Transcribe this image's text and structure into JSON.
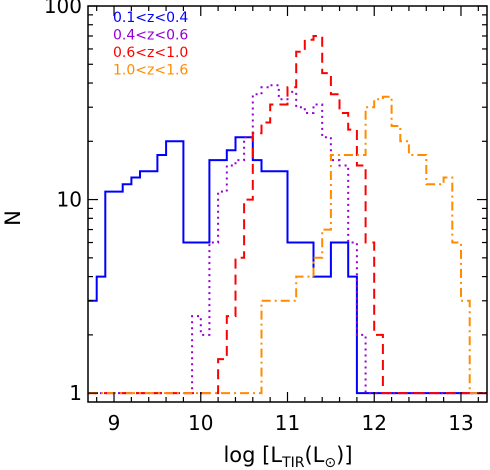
{
  "chart_data": {
    "type": "line",
    "subtype": "histogram-steps",
    "xlabel_parts": {
      "pre": "log [L",
      "sub": "TIR",
      "mid": "(L",
      "sym": "⊙",
      "post": ")]"
    },
    "ylabel": "N",
    "xlim": [
      8.7,
      13.3
    ],
    "ylim": [
      0.9,
      100
    ],
    "y_scale": "log",
    "x_ticks": [
      9,
      10,
      11,
      12,
      13
    ],
    "y_ticks": [
      {
        "value": 1,
        "label": "1"
      },
      {
        "value": 10,
        "label": "10"
      },
      {
        "value": 100,
        "label": "100"
      }
    ],
    "legend_position": "top-left",
    "series": [
      {
        "name": "0.1<z<0.4",
        "color": "#0000ff",
        "style": "solid",
        "x": [
          8.7,
          8.8,
          8.9,
          9.0,
          9.1,
          9.2,
          9.3,
          9.4,
          9.5,
          9.6,
          9.7,
          9.8,
          9.9,
          10.0,
          10.1,
          10.2,
          10.3,
          10.4,
          10.5,
          10.6,
          10.7,
          10.8,
          10.9,
          11.0,
          11.1,
          11.2,
          11.3,
          11.4,
          11.5,
          11.6,
          11.7,
          11.8,
          11.9,
          12.0,
          12.1,
          12.2,
          12.3,
          12.4,
          12.5,
          12.6,
          12.7,
          12.8,
          12.9,
          13.0,
          13.1,
          13.2,
          13.3
        ],
        "y": [
          3,
          4,
          11,
          11,
          12,
          13,
          14,
          14,
          17,
          20,
          20,
          6,
          6,
          6,
          16,
          16,
          18,
          21,
          21,
          16,
          14,
          14,
          14,
          6,
          6,
          6,
          4,
          4,
          6,
          6,
          4,
          1,
          1,
          1,
          1,
          1,
          1,
          1,
          1,
          1,
          1,
          1,
          1,
          1,
          1,
          1,
          1
        ]
      },
      {
        "name": "0.4<z<0.6",
        "color": "#9400d3",
        "style": "dotted",
        "x": [
          8.7,
          8.8,
          8.9,
          9.0,
          9.1,
          9.2,
          9.3,
          9.4,
          9.5,
          9.6,
          9.7,
          9.8,
          9.9,
          10.0,
          10.1,
          10.2,
          10.3,
          10.4,
          10.5,
          10.6,
          10.7,
          10.8,
          10.9,
          11.0,
          11.1,
          11.2,
          11.3,
          11.4,
          11.5,
          11.6,
          11.7,
          11.8,
          11.9,
          12.0,
          12.1,
          12.2,
          12.3,
          12.4,
          12.5,
          12.6,
          12.7,
          12.8,
          12.9,
          13.0,
          13.1,
          13.2,
          13.3
        ],
        "y": [
          1,
          1,
          1,
          1,
          1,
          1,
          1,
          1,
          1,
          1,
          1,
          1,
          2.5,
          2,
          6,
          11,
          15,
          16,
          21,
          35,
          38,
          39,
          33,
          36,
          30,
          28,
          31,
          21,
          16,
          15,
          6,
          2,
          1,
          1,
          1,
          1,
          1,
          1,
          1,
          1,
          1,
          1,
          1,
          1,
          1,
          1,
          1
        ]
      },
      {
        "name": "0.6<z<1.0",
        "color": "#ff0000",
        "style": "dashed",
        "x": [
          8.7,
          8.8,
          8.9,
          9.0,
          9.1,
          9.2,
          9.3,
          9.4,
          9.5,
          9.6,
          9.7,
          9.8,
          9.9,
          10.0,
          10.1,
          10.2,
          10.3,
          10.4,
          10.5,
          10.6,
          10.7,
          10.8,
          10.9,
          11.0,
          11.1,
          11.2,
          11.3,
          11.4,
          11.5,
          11.6,
          11.7,
          11.8,
          11.9,
          12.0,
          12.1,
          12.2,
          12.3,
          12.4,
          12.5,
          12.6,
          12.7,
          12.8,
          12.9,
          13.0,
          13.1,
          13.2,
          13.3
        ],
        "y": [
          1,
          1,
          1,
          1,
          1,
          1,
          1,
          1,
          1,
          1,
          1,
          1,
          1,
          1,
          1,
          1.5,
          2.5,
          5,
          10,
          22,
          25,
          31,
          31,
          38,
          58,
          67,
          70,
          45,
          35,
          28,
          23,
          15,
          6,
          2,
          1,
          1,
          1,
          1,
          1,
          1,
          1,
          1,
          1,
          1,
          1,
          1,
          1
        ]
      },
      {
        "name": "1.0<z<1.6",
        "color": "#ff8c00",
        "style": "dashdot",
        "x": [
          8.7,
          8.8,
          8.9,
          9.0,
          9.1,
          9.2,
          9.3,
          9.4,
          9.5,
          9.6,
          9.7,
          9.8,
          9.9,
          10.0,
          10.1,
          10.2,
          10.3,
          10.4,
          10.5,
          10.6,
          10.7,
          10.8,
          10.9,
          11.0,
          11.1,
          11.2,
          11.3,
          11.4,
          11.5,
          11.6,
          11.7,
          11.8,
          11.9,
          12.0,
          12.1,
          12.2,
          12.3,
          12.4,
          12.5,
          12.6,
          12.7,
          12.8,
          12.9,
          13.0,
          13.1,
          13.2,
          13.3
        ],
        "y": [
          1,
          1,
          1,
          1,
          1,
          1,
          1,
          1,
          1,
          1,
          1,
          1,
          1,
          1,
          1,
          1,
          1,
          1,
          1,
          1,
          3,
          3,
          3,
          3,
          4,
          4,
          5,
          7,
          17,
          17,
          17,
          17,
          30,
          33,
          34,
          24,
          20,
          17,
          17,
          12,
          12,
          13,
          6,
          3,
          1,
          1,
          1
        ]
      }
    ]
  }
}
